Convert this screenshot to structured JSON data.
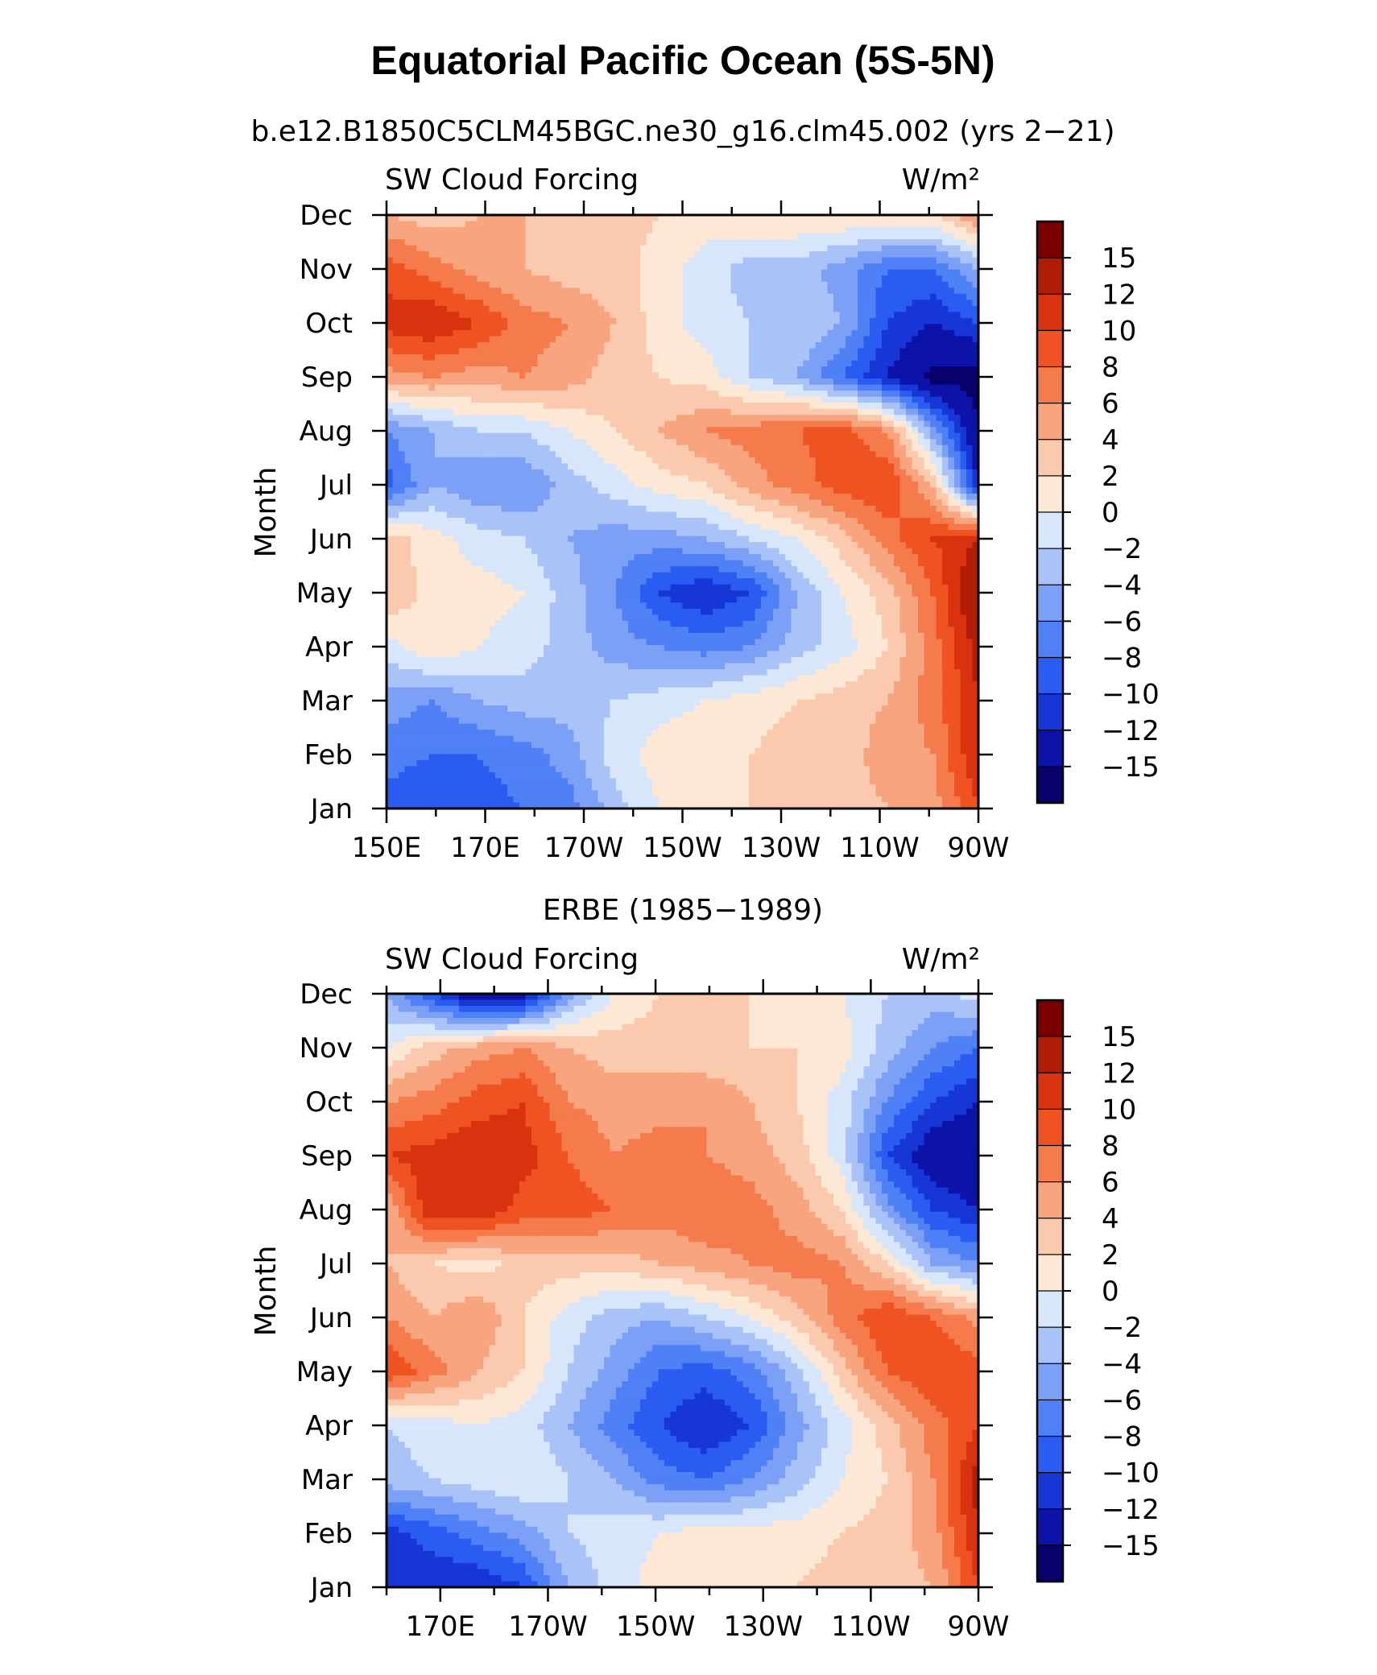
{
  "figure": {
    "title": "Equatorial Pacific Ocean (5S-5N)"
  },
  "chart_data": [
    {
      "type": "heatmap",
      "title": "b.e12.B1850C5CLM45BGC.ne30_g16.clm45.002 (yrs 2−21)",
      "left_label": "SW Cloud Forcing",
      "units_label": "W/m²",
      "ylabel": "Month",
      "x_tick_labels": [
        "150E",
        "170E",
        "170W",
        "150W",
        "130W",
        "110W",
        "90W"
      ],
      "y_tick_labels": [
        "Jan",
        "Feb",
        "Mar",
        "Apr",
        "May",
        "Jun",
        "Jul",
        "Aug",
        "Sep",
        "Oct",
        "Nov",
        "Dec"
      ],
      "colorbar_labels": [
        "15",
        "12",
        "10",
        "8",
        "6",
        "4",
        "2",
        "0",
        "−2",
        "−4",
        "−6",
        "−8",
        "−10",
        "−12",
        "−15"
      ],
      "x_lons": [
        150,
        170,
        190,
        210,
        230,
        250,
        270
      ],
      "months": [
        "Jan",
        "Feb",
        "Mar",
        "Apr",
        "May",
        "Jun",
        "Jul",
        "Aug",
        "Sep",
        "Oct",
        "Nov",
        "Dec"
      ],
      "values": [
        [
          -9,
          -10,
          -9,
          -8,
          -7,
          -3,
          0,
          1,
          2,
          3,
          3,
          4,
          5,
          10
        ],
        [
          -7,
          -8,
          -8,
          -7,
          -5,
          -1,
          1,
          2,
          2,
          3,
          3,
          5,
          6,
          12
        ],
        [
          -5,
          -6,
          -4,
          -3,
          -3,
          -2,
          -1,
          0,
          1,
          2,
          3,
          4,
          7,
          12
        ],
        [
          -1,
          2,
          0,
          -1,
          -3,
          -5,
          -6,
          -7,
          -6,
          -3,
          -1,
          2,
          7,
          13
        ],
        [
          4,
          1,
          1,
          0,
          -3,
          -6,
          -10,
          -12,
          -10,
          -4,
          0,
          3,
          8,
          15
        ],
        [
          3,
          1,
          -1,
          -2,
          -4,
          -5,
          -5,
          -4,
          -2,
          0,
          3,
          7,
          10,
          12
        ],
        [
          -9,
          -4,
          -6,
          -6,
          -3,
          -1,
          1,
          2,
          5,
          7,
          9,
          10,
          4,
          -12
        ],
        [
          -6,
          -4,
          -2,
          -2,
          0,
          2,
          4,
          6,
          7,
          8,
          9,
          6,
          -5,
          -15
        ],
        [
          5,
          6,
          5,
          6,
          5,
          3,
          2,
          1,
          -2,
          -4,
          -8,
          -12,
          -16,
          -16
        ],
        [
          11,
          12,
          10,
          7,
          6,
          4,
          1,
          -1,
          -2,
          -2,
          -4,
          -10,
          -12,
          -10
        ],
        [
          9,
          7,
          5,
          4,
          3,
          3,
          1,
          -1,
          -3,
          -3,
          -5,
          -8,
          -8,
          -4
        ],
        [
          4,
          3,
          4,
          4,
          3,
          3,
          2,
          1,
          2,
          2,
          2,
          2,
          2,
          6
        ]
      ],
      "value_range": [
        -18,
        18
      ],
      "colormap": [
        "#08006b",
        "#0d12a8",
        "#1637d6",
        "#2a5cf2",
        "#4f80f5",
        "#7ba0f6",
        "#a9c3f8",
        "#d8e6fb",
        "#fde8d6",
        "#fbcaae",
        "#f8a47e",
        "#f57a4c",
        "#ef5322",
        "#d8320e",
        "#b01c05",
        "#7a0000"
      ]
    },
    {
      "type": "heatmap",
      "title": "ERBE (1985−1989)",
      "left_label": "SW Cloud Forcing",
      "units_label": "W/m²",
      "ylabel": "Month",
      "x_tick_labels": [
        "170E",
        "170W",
        "150W",
        "130W",
        "110W",
        "90W"
      ],
      "y_tick_labels": [
        "Jan",
        "Feb",
        "Mar",
        "Apr",
        "May",
        "Jun",
        "Jul",
        "Aug",
        "Sep",
        "Oct",
        "Nov",
        "Dec"
      ],
      "colorbar_labels": [
        "15",
        "12",
        "10",
        "8",
        "6",
        "4",
        "2",
        "0",
        "−2",
        "−4",
        "−6",
        "−8",
        "−10",
        "−12",
        "−15"
      ],
      "x_lons": [
        170,
        190,
        210,
        230,
        250,
        270
      ],
      "months": [
        "Jan",
        "Feb",
        "Mar",
        "Apr",
        "May",
        "Jun",
        "Jul",
        "Aug",
        "Sep",
        "Oct",
        "Nov",
        "Dec"
      ],
      "values": [
        [
          -10,
          -12,
          -12,
          -10,
          -4,
          -1,
          1,
          2,
          2,
          2,
          3,
          3,
          4,
          10
        ],
        [
          -11,
          -9,
          -7,
          -5,
          -2,
          -1,
          0,
          1,
          1,
          1,
          2,
          3,
          5,
          12
        ],
        [
          -3,
          -2,
          -1,
          0,
          -2,
          -4,
          -7,
          -8,
          -6,
          -3,
          0,
          2,
          6,
          13
        ],
        [
          -2,
          -1,
          0,
          -1,
          -4,
          -7,
          -10,
          -12,
          -10,
          -5,
          -1,
          3,
          7,
          10
        ],
        [
          10,
          7,
          4,
          2,
          -2,
          -5,
          -8,
          -9,
          -7,
          -3,
          3,
          8,
          10,
          9
        ],
        [
          6,
          4,
          6,
          2,
          -1,
          -3,
          -4,
          -2,
          0,
          3,
          7,
          10,
          8,
          5
        ],
        [
          4,
          2,
          1,
          3,
          3,
          3,
          4,
          5,
          6,
          7,
          6,
          2,
          -4,
          -6
        ],
        [
          4,
          12,
          12,
          9,
          9,
          8,
          7,
          8,
          7,
          5,
          2,
          -5,
          -10,
          -12
        ],
        [
          10,
          11,
          12,
          11,
          8,
          6,
          7,
          6,
          5,
          3,
          -1,
          -10,
          -14,
          -15
        ],
        [
          6,
          7,
          9,
          10,
          6,
          5,
          5,
          6,
          4,
          2,
          -1,
          -6,
          -10,
          -12
        ],
        [
          0,
          3,
          5,
          6,
          4,
          3,
          3,
          2,
          2,
          2,
          1,
          -3,
          -6,
          -8
        ],
        [
          -4,
          -10,
          -15,
          -14,
          -5,
          0,
          2,
          2,
          2,
          1,
          0,
          -2,
          -3,
          -1
        ]
      ],
      "value_range": [
        -18,
        18
      ],
      "colormap": [
        "#08006b",
        "#0d12a8",
        "#1637d6",
        "#2a5cf2",
        "#4f80f5",
        "#7ba0f6",
        "#a9c3f8",
        "#d8e6fb",
        "#fde8d6",
        "#fbcaae",
        "#f8a47e",
        "#f57a4c",
        "#ef5322",
        "#d8320e",
        "#b01c05",
        "#7a0000"
      ]
    }
  ]
}
